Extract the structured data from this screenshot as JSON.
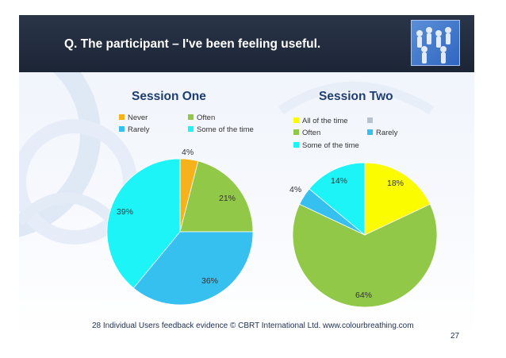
{
  "slide": {
    "title": "Q. The participant – I've been feeling useful.",
    "footer": "28 Individual Users feedback evidence © CBRT International Ltd. www.colourbreathing.com",
    "page_number": "27"
  },
  "colors": {
    "title_bar": "#1f2a3d",
    "never": "#f5b21b",
    "often": "#92c848",
    "rarely": "#36c0f0",
    "some_of_the_time": "#1df4f8",
    "all_of_the_time": "#fbfc00",
    "blank_series": "#b8c2cc"
  },
  "chart_data": [
    {
      "type": "pie",
      "title": "Session One",
      "legend": [
        {
          "label": "Never",
          "color": "#f5b21b"
        },
        {
          "label": "Often",
          "color": "#92c848"
        },
        {
          "label": "Rarely",
          "color": "#36c0f0"
        },
        {
          "label": "Some of the time",
          "color": "#1df4f8"
        }
      ],
      "slices": [
        {
          "label": "Never",
          "value": 4,
          "display": "4%",
          "color": "#f5b21b"
        },
        {
          "label": "Often",
          "value": 21,
          "display": "21%",
          "color": "#92c848"
        },
        {
          "label": "Rarely",
          "value": 36,
          "display": "36%",
          "color": "#36c0f0"
        },
        {
          "label": "Some of the time",
          "value": 39,
          "display": "39%",
          "color": "#1df4f8"
        }
      ]
    },
    {
      "type": "pie",
      "title": "Session Two",
      "legend": [
        {
          "label": "All of the time",
          "color": "#fbfc00"
        },
        {
          "label": "",
          "color": "#b8c2cc"
        },
        {
          "label": "Often",
          "color": "#92c848"
        },
        {
          "label": "Rarely",
          "color": "#36c0f0"
        },
        {
          "label": "Some of the time",
          "color": "#1df4f8"
        }
      ],
      "slices": [
        {
          "label": "All of the time",
          "value": 18,
          "display": "18%",
          "color": "#fbfc00"
        },
        {
          "label": "Often",
          "value": 64,
          "display": "64%",
          "color": "#92c848"
        },
        {
          "label": "Rarely",
          "value": 4,
          "display": "4%",
          "color": "#36c0f0"
        },
        {
          "label": "Some of the time",
          "value": 14,
          "display": "14%",
          "color": "#1df4f8"
        }
      ]
    }
  ]
}
